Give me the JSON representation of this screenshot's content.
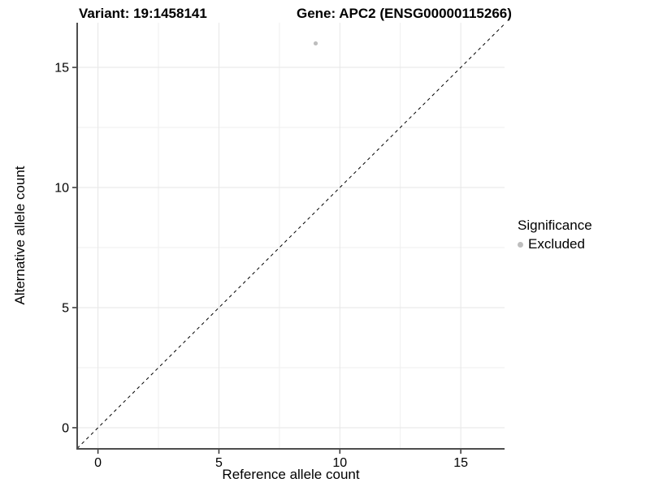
{
  "chart_data": {
    "type": "scatter",
    "title_left": "Variant: 19:1458141",
    "title_right": "Gene: APC2 (ENSG00000115266)",
    "xlabel": "Reference allele count",
    "ylabel": "Alternative allele count",
    "xlim": [
      -0.86,
      16.81
    ],
    "ylim": [
      -0.88,
      16.86
    ],
    "x_ticks": [
      0,
      5,
      10,
      15
    ],
    "y_ticks": [
      0,
      5,
      10,
      15
    ],
    "x_minor_ticks": [
      2.5,
      7.5,
      12.5
    ],
    "y_minor_ticks": [
      2.5,
      7.5,
      12.5
    ],
    "grid": {
      "major_color": "#e6e6e6",
      "minor_color": "#efefef"
    },
    "axis_line_color": "#4d4d4d",
    "tick_color": "#333333",
    "text_color": "#000000",
    "series": [
      {
        "name": "Excluded",
        "color": "#bebebe",
        "marker": "circle",
        "points": [
          {
            "x": 9,
            "y": 16
          }
        ]
      }
    ],
    "identity_line": {
      "slope": 1,
      "intercept": 0,
      "style": "dashed",
      "color": "#000000"
    },
    "legend": {
      "title": "Significance",
      "position": "right",
      "items": [
        {
          "label": "Excluded",
          "color": "#bebebe",
          "marker": "circle"
        }
      ]
    }
  }
}
